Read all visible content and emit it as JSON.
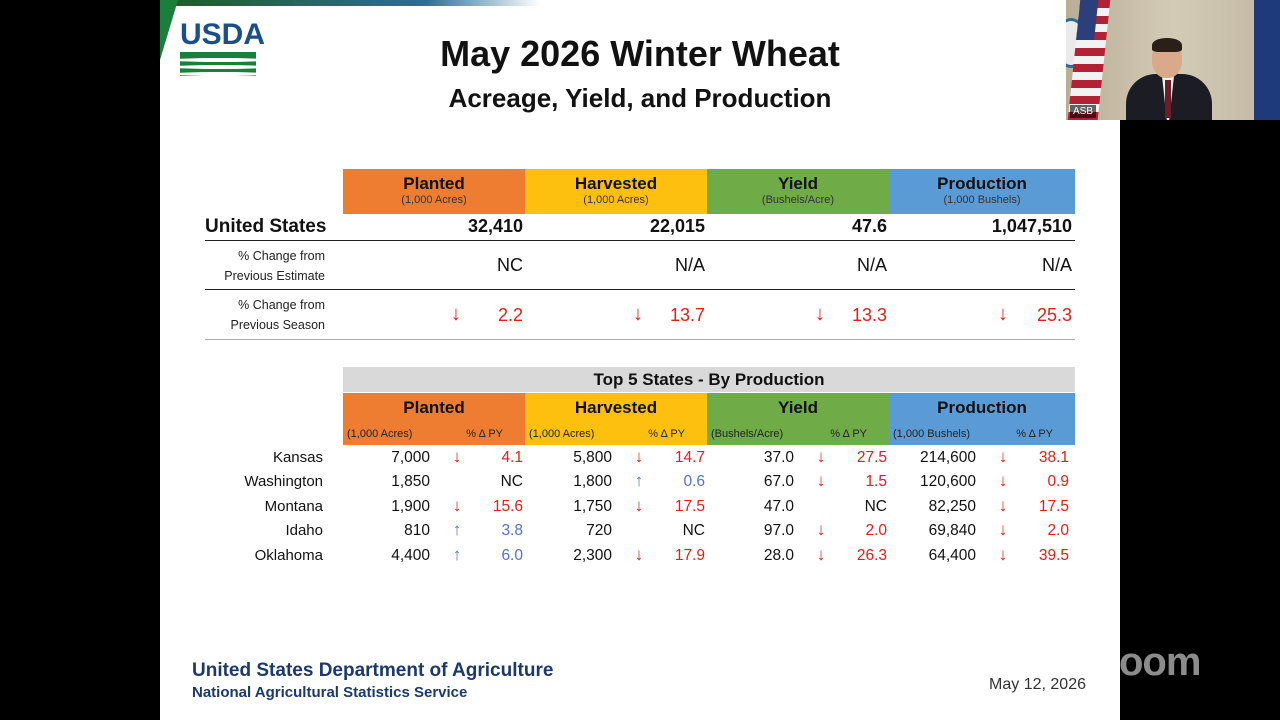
{
  "slide": {
    "title": "May 2026 Winter Wheat",
    "subtitle": "Acreage, Yield, and Production",
    "logo_text": "USDA",
    "footer_org": "United States Department of Agriculture",
    "footer_agency": "National Agricultural Statistics Service",
    "date": "May 12, 2026",
    "colors": {
      "planted": "#ee7d31",
      "harvested": "#fdc00f",
      "yield": "#6fab47",
      "production": "#5b9bd5",
      "decrease": "#e0201b",
      "increase": "#5470c9"
    }
  },
  "us_table": {
    "columns": [
      {
        "label": "Planted",
        "unit": "(1,000 Acres)"
      },
      {
        "label": "Harvested",
        "unit": "(1,000 Acres)"
      },
      {
        "label": "Yield",
        "unit": "(Bushels/Acre)"
      },
      {
        "label": "Production",
        "unit": "(1,000 Bushels)"
      }
    ],
    "row_label": "United States",
    "values": [
      "32,410",
      "22,015",
      "47.6",
      "1,047,510"
    ],
    "prev_estimate_label_1": "% Change from",
    "prev_estimate_label_2": "Previous Estimate",
    "prev_estimate": [
      "NC",
      "N/A",
      "N/A",
      "N/A"
    ],
    "prev_season_label_1": "% Change from",
    "prev_season_label_2": "Previous Season",
    "prev_season": [
      "2.2",
      "13.7",
      "13.3",
      "25.3"
    ],
    "prev_season_direction": [
      "down",
      "down",
      "down",
      "down"
    ]
  },
  "top5": {
    "title": "Top 5 States - By Production",
    "columns": [
      {
        "label": "Planted",
        "unit": "(1,000 Acres)",
        "pct": "% Δ PY"
      },
      {
        "label": "Harvested",
        "unit": "(1,000 Acres)",
        "pct": "% Δ PY"
      },
      {
        "label": "Yield",
        "unit": "(Bushels/Acre)",
        "pct": "% Δ PY"
      },
      {
        "label": "Production",
        "unit": "(1,000 Bushels)",
        "pct": "% Δ PY"
      }
    ],
    "rows": [
      {
        "state": "Kansas",
        "cells": [
          {
            "v": "7,000",
            "p": "4.1",
            "d": "down"
          },
          {
            "v": "5,800",
            "p": "14.7",
            "d": "down"
          },
          {
            "v": "37.0",
            "p": "27.5",
            "d": "down"
          },
          {
            "v": "214,600",
            "p": "38.1",
            "d": "down"
          }
        ]
      },
      {
        "state": "Washington",
        "cells": [
          {
            "v": "1,850",
            "p": "NC",
            "d": "none"
          },
          {
            "v": "1,800",
            "p": "0.6",
            "d": "up"
          },
          {
            "v": "67.0",
            "p": "1.5",
            "d": "down"
          },
          {
            "v": "120,600",
            "p": "0.9",
            "d": "down"
          }
        ]
      },
      {
        "state": "Montana",
        "cells": [
          {
            "v": "1,900",
            "p": "15.6",
            "d": "down"
          },
          {
            "v": "1,750",
            "p": "17.5",
            "d": "down"
          },
          {
            "v": "47.0",
            "p": "NC",
            "d": "none"
          },
          {
            "v": "82,250",
            "p": "17.5",
            "d": "down"
          }
        ]
      },
      {
        "state": "Idaho",
        "cells": [
          {
            "v": "810",
            "p": "3.8",
            "d": "up"
          },
          {
            "v": "720",
            "p": "NC",
            "d": "none"
          },
          {
            "v": "97.0",
            "p": "2.0",
            "d": "down"
          },
          {
            "v": "69,840",
            "p": "2.0",
            "d": "down"
          }
        ]
      },
      {
        "state": "Oklahoma",
        "cells": [
          {
            "v": "4,400",
            "p": "6.0",
            "d": "up"
          },
          {
            "v": "2,300",
            "p": "17.9",
            "d": "down"
          },
          {
            "v": "28.0",
            "p": "26.3",
            "d": "down"
          },
          {
            "v": "64,400",
            "p": "39.5",
            "d": "down"
          }
        ]
      }
    ]
  },
  "video": {
    "name_tag": "ASB"
  },
  "zoom_watermark": "zoom"
}
